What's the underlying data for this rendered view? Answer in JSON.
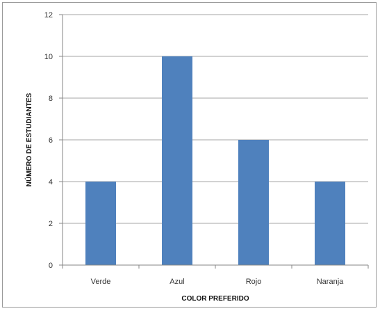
{
  "chart_data": {
    "type": "bar",
    "title": "",
    "xlabel": "COLOR PREFERIDO",
    "ylabel": "NÚMERO DE ESTUDIANTES",
    "categories": [
      "Verde",
      "Azul",
      "Rojo",
      "Naranja"
    ],
    "values": [
      4,
      10,
      6,
      4
    ],
    "ylim": [
      0,
      12
    ],
    "yticks": [
      "0",
      "2",
      "4",
      "6",
      "8",
      "10",
      "12"
    ],
    "grid": true,
    "legend": "none",
    "colors": {
      "bar": "#4f81bd",
      "grid": "#a6a6a6",
      "axis": "#868686"
    }
  }
}
